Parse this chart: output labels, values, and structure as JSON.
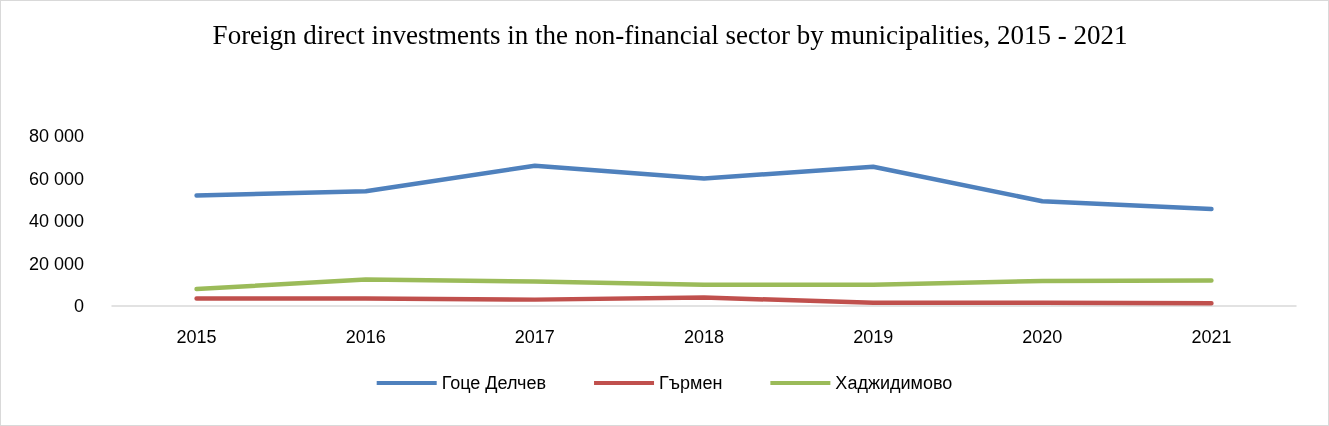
{
  "chart_data": {
    "type": "line",
    "title": "Foreign direct investments in the non-financial sector by municipalities, 2015 - 2021",
    "categories": [
      "2015",
      "2016",
      "2017",
      "2018",
      "2019",
      "2020",
      "2021"
    ],
    "series": [
      {
        "name": "Гоце Делчев",
        "color": "#4f81bd",
        "values": [
          52000,
          54000,
          66000,
          60000,
          65500,
          49300,
          45600
        ]
      },
      {
        "name": "Гърмен",
        "color": "#c0504d",
        "values": [
          3500,
          3500,
          3000,
          4000,
          1500,
          1500,
          1300
        ]
      },
      {
        "name": "Хаджидимово",
        "color": "#9bbb59",
        "values": [
          8000,
          12500,
          11500,
          10000,
          10000,
          11800,
          12000
        ]
      }
    ],
    "ylim": [
      0,
      80000
    ],
    "yticks": [
      {
        "value": 0,
        "label": "0"
      },
      {
        "value": 20000,
        "label": "20 000"
      },
      {
        "value": 40000,
        "label": "40 000"
      },
      {
        "value": 60000,
        "label": "60 000"
      },
      {
        "value": 80000,
        "label": "80 000"
      }
    ],
    "grid": false,
    "legend": "bottom",
    "marker": "none",
    "line_style": "solid"
  }
}
